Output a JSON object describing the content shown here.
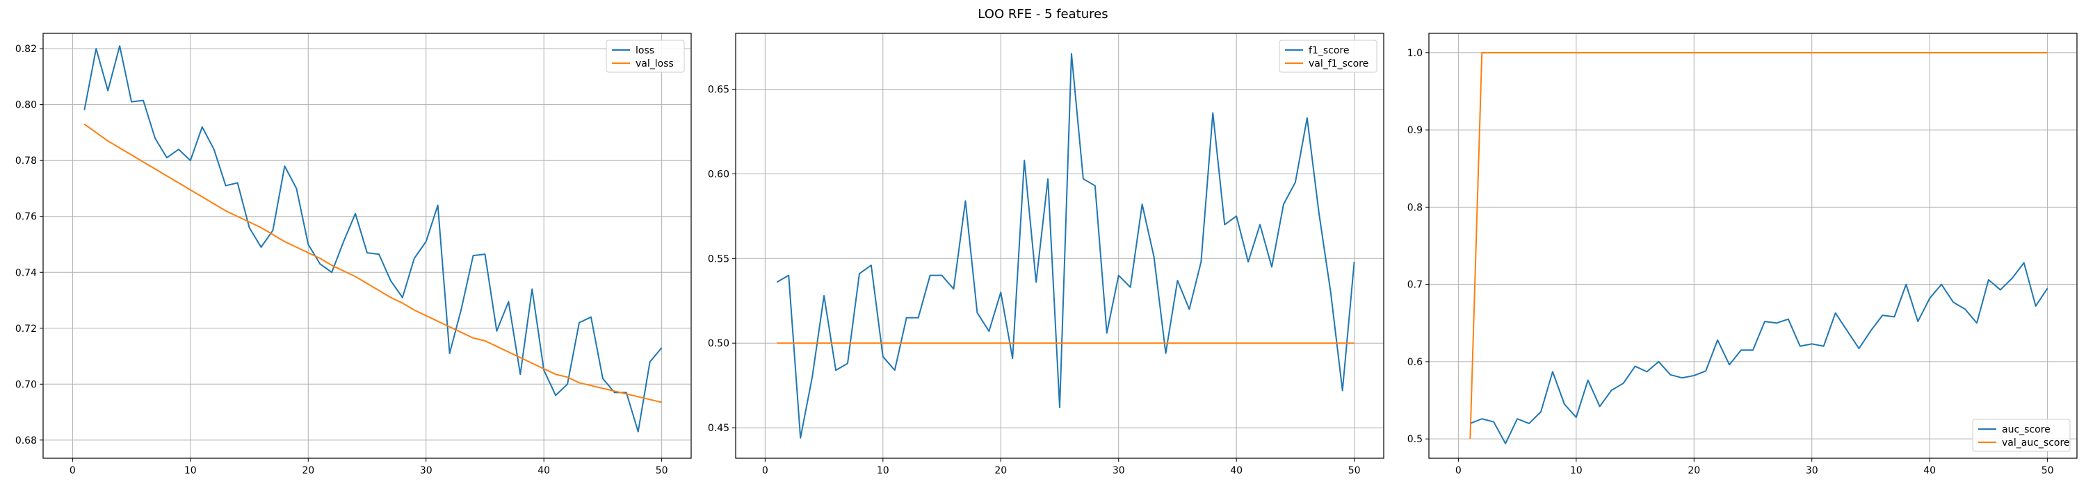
{
  "figure": {
    "title": "LOO RFE - 5 features"
  },
  "colors": {
    "series1": "#1f77b4",
    "series2": "#ff7f0e",
    "grid": "#b0b0b0"
  },
  "chart_data": [
    {
      "type": "line",
      "legend_position": "upper-right",
      "grid": true,
      "xlim": [
        -2.5,
        52.5
      ],
      "ylim": [
        0.6735,
        0.8255
      ],
      "xticks": [
        0,
        10,
        20,
        30,
        40,
        50
      ],
      "yticks": [
        0.68,
        0.7,
        0.72,
        0.74,
        0.76,
        0.78,
        0.8,
        0.82
      ],
      "tick_decimals": 2,
      "x": [
        1,
        2,
        3,
        4,
        5,
        6,
        7,
        8,
        9,
        10,
        11,
        12,
        13,
        14,
        15,
        16,
        17,
        18,
        19,
        20,
        21,
        22,
        23,
        24,
        25,
        26,
        27,
        28,
        29,
        30,
        31,
        32,
        33,
        34,
        35,
        36,
        37,
        38,
        39,
        40,
        41,
        42,
        43,
        44,
        45,
        46,
        47,
        48,
        49,
        50
      ],
      "series": [
        {
          "name": "loss",
          "color": "#1f77b4",
          "values": [
            0.798,
            0.82,
            0.805,
            0.821,
            0.801,
            0.8015,
            0.788,
            0.781,
            0.784,
            0.78,
            0.792,
            0.784,
            0.771,
            0.772,
            0.756,
            0.749,
            0.755,
            0.778,
            0.77,
            0.75,
            0.743,
            0.74,
            0.751,
            0.761,
            0.747,
            0.7465,
            0.737,
            0.731,
            0.745,
            0.751,
            0.764,
            0.711,
            0.727,
            0.746,
            0.7465,
            0.719,
            0.7295,
            0.7035,
            0.734,
            0.705,
            0.696,
            0.7,
            0.722,
            0.724,
            0.702,
            0.697,
            0.697,
            0.683,
            0.708,
            0.713
          ]
        },
        {
          "name": "val_loss",
          "color": "#ff7f0e",
          "values": [
            0.793,
            0.79,
            0.787,
            0.7845,
            0.782,
            0.7795,
            0.777,
            0.7745,
            0.772,
            0.7695,
            0.767,
            0.7645,
            0.762,
            0.76,
            0.758,
            0.756,
            0.7535,
            0.751,
            0.749,
            0.747,
            0.745,
            0.7425,
            0.7405,
            0.7385,
            0.736,
            0.7335,
            0.731,
            0.729,
            0.7265,
            0.7245,
            0.7225,
            0.7205,
            0.7185,
            0.7165,
            0.7155,
            0.7135,
            0.7115,
            0.7095,
            0.7075,
            0.7055,
            0.7035,
            0.7025,
            0.7005,
            0.6995,
            0.6985,
            0.6975,
            0.6965,
            0.6955,
            0.6945,
            0.6935
          ]
        }
      ]
    },
    {
      "type": "line",
      "legend_position": "upper-right",
      "grid": true,
      "xlim": [
        -2.5,
        52.5
      ],
      "ylim": [
        0.432,
        0.683
      ],
      "xticks": [
        0,
        10,
        20,
        30,
        40,
        50
      ],
      "yticks": [
        0.45,
        0.5,
        0.55,
        0.6,
        0.65
      ],
      "tick_decimals": 2,
      "x": [
        1,
        2,
        3,
        4,
        5,
        6,
        7,
        8,
        9,
        10,
        11,
        12,
        13,
        14,
        15,
        16,
        17,
        18,
        19,
        20,
        21,
        22,
        23,
        24,
        25,
        26,
        27,
        28,
        29,
        30,
        31,
        32,
        33,
        34,
        35,
        36,
        37,
        38,
        39,
        40,
        41,
        42,
        43,
        44,
        45,
        46,
        47,
        48,
        49,
        50
      ],
      "series": [
        {
          "name": "f1_score",
          "color": "#1f77b4",
          "values": [
            0.536,
            0.54,
            0.444,
            0.48,
            0.528,
            0.484,
            0.488,
            0.541,
            0.546,
            0.492,
            0.484,
            0.515,
            0.515,
            0.54,
            0.54,
            0.532,
            0.584,
            0.518,
            0.507,
            0.53,
            0.491,
            0.608,
            0.536,
            0.597,
            0.462,
            0.671,
            0.597,
            0.593,
            0.506,
            0.54,
            0.533,
            0.582,
            0.551,
            0.494,
            0.537,
            0.52,
            0.548,
            0.636,
            0.57,
            0.575,
            0.548,
            0.57,
            0.545,
            0.582,
            0.595,
            0.633,
            0.577,
            0.53,
            0.472,
            0.548
          ]
        },
        {
          "name": "val_f1_score",
          "color": "#ff7f0e",
          "values": [
            0.5,
            0.5,
            0.5,
            0.5,
            0.5,
            0.5,
            0.5,
            0.5,
            0.5,
            0.5,
            0.5,
            0.5,
            0.5,
            0.5,
            0.5,
            0.5,
            0.5,
            0.5,
            0.5,
            0.5,
            0.5,
            0.5,
            0.5,
            0.5,
            0.5,
            0.5,
            0.5,
            0.5,
            0.5,
            0.5,
            0.5,
            0.5,
            0.5,
            0.5,
            0.5,
            0.5,
            0.5,
            0.5,
            0.5,
            0.5,
            0.5,
            0.5,
            0.5,
            0.5,
            0.5,
            0.5,
            0.5,
            0.5,
            0.5,
            0.5
          ]
        }
      ]
    },
    {
      "type": "line",
      "legend_position": "lower-right",
      "grid": true,
      "xlim": [
        -2.5,
        52.5
      ],
      "ylim": [
        0.475,
        1.025
      ],
      "xticks": [
        0,
        10,
        20,
        30,
        40,
        50
      ],
      "yticks": [
        0.5,
        0.6,
        0.7,
        0.8,
        0.9,
        1.0
      ],
      "tick_decimals": 1,
      "x": [
        1,
        2,
        3,
        4,
        5,
        6,
        7,
        8,
        9,
        10,
        11,
        12,
        13,
        14,
        15,
        16,
        17,
        18,
        19,
        20,
        21,
        22,
        23,
        24,
        25,
        26,
        27,
        28,
        29,
        30,
        31,
        32,
        33,
        34,
        35,
        36,
        37,
        38,
        39,
        40,
        41,
        42,
        43,
        44,
        45,
        46,
        47,
        48,
        49,
        50
      ],
      "series": [
        {
          "name": "auc_score",
          "color": "#1f77b4",
          "values": [
            0.52,
            0.526,
            0.522,
            0.494,
            0.526,
            0.52,
            0.535,
            0.587,
            0.545,
            0.528,
            0.576,
            0.542,
            0.563,
            0.572,
            0.594,
            0.587,
            0.6,
            0.583,
            0.579,
            0.582,
            0.588,
            0.628,
            0.596,
            0.615,
            0.615,
            0.652,
            0.65,
            0.655,
            0.62,
            0.623,
            0.62,
            0.663,
            0.64,
            0.617,
            0.64,
            0.66,
            0.658,
            0.7,
            0.652,
            0.682,
            0.7,
            0.677,
            0.668,
            0.65,
            0.706,
            0.693,
            0.708,
            0.728,
            0.672,
            0.695
          ]
        },
        {
          "name": "val_auc_score",
          "color": "#ff7f0e",
          "values": [
            0.5,
            1.0,
            1.0,
            1.0,
            1.0,
            1.0,
            1.0,
            1.0,
            1.0,
            1.0,
            1.0,
            1.0,
            1.0,
            1.0,
            1.0,
            1.0,
            1.0,
            1.0,
            1.0,
            1.0,
            1.0,
            1.0,
            1.0,
            1.0,
            1.0,
            1.0,
            1.0,
            1.0,
            1.0,
            1.0,
            1.0,
            1.0,
            1.0,
            1.0,
            1.0,
            1.0,
            1.0,
            1.0,
            1.0,
            1.0,
            1.0,
            1.0,
            1.0,
            1.0,
            1.0,
            1.0,
            1.0,
            1.0,
            1.0,
            1.0
          ]
        }
      ]
    }
  ]
}
